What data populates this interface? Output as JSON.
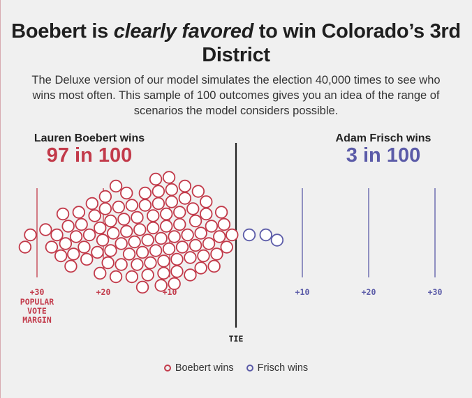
{
  "title": {
    "part1": "Boebert is ",
    "emphasis": "clearly favored",
    "part2": " to win Colorado’s 3rd District"
  },
  "subtitle": "The Deluxe version of our model simulates the election 40,000 times to see who wins most often. This sample of 100 outcomes gives you an idea of the range of scenarios the model considers possible.",
  "left_side": {
    "heading": "Lauren Boebert wins",
    "tally": "97 in 100"
  },
  "right_side": {
    "heading": "Adam Frisch wins",
    "tally": "3 in 100"
  },
  "colors": {
    "boebert": "#c23a4a",
    "frisch": "#5b5ba8",
    "tie": "#222222",
    "background": "#f0f0f0"
  },
  "legend": {
    "boebert": "Boebert wins",
    "frisch": "Frisch wins"
  },
  "chart_data": {
    "type": "scatter",
    "subtype": "beeswarm",
    "x_axis_label": "POPULAR VOTE MARGIN",
    "center_label": "TIE",
    "xlim": [
      -30,
      30
    ],
    "left_ticks": [
      {
        "value": -30,
        "label": "+30"
      },
      {
        "value": -20,
        "label": "+20"
      },
      {
        "value": -10,
        "label": "+10"
      }
    ],
    "right_ticks": [
      {
        "value": 10,
        "label": "+10"
      },
      {
        "value": 20,
        "label": "+20"
      },
      {
        "value": 30,
        "label": "+30"
      }
    ],
    "series": [
      {
        "name": "Boebert wins",
        "count": 97,
        "margins": [
          -31.8,
          -31.0,
          -28.7,
          -27.8,
          -27.0,
          -26.1,
          -25.3,
          -24.5,
          -23.7,
          -22.9,
          -22.1,
          -21.3,
          -20.5,
          -19.7,
          -18.9,
          -18.1,
          -17.3,
          -16.5,
          -15.7,
          -14.9,
          -14.1,
          -13.3,
          -12.5,
          -11.7,
          -10.9,
          -10.1,
          -9.3,
          -8.5,
          -7.7,
          -6.9,
          -6.1,
          -5.3,
          -4.5,
          -3.7,
          -2.9,
          -2.2,
          -1.4,
          -0.6,
          -26.4,
          -24.9,
          -23.3,
          -21.7,
          -20.1,
          -18.5,
          -16.9,
          -15.3,
          -13.7,
          -12.1,
          -10.5,
          -8.9,
          -7.3,
          -5.7,
          -4.1,
          -2.5,
          -25.7,
          -24.1,
          -22.5,
          -20.9,
          -19.3,
          -17.7,
          -16.1,
          -14.5,
          -12.9,
          -11.3,
          -9.7,
          -8.1,
          -6.5,
          -4.9,
          -3.3,
          -1.8,
          -20.5,
          -18.9,
          -17.3,
          -15.7,
          -14.1,
          -12.5,
          -10.9,
          -9.3,
          -7.7,
          -6.1,
          -4.5,
          -19.7,
          -18.1,
          -16.5,
          -14.9,
          -13.3,
          -11.7,
          -10.1,
          -8.5,
          -6.9,
          -5.3,
          -13.7,
          -12.1,
          -10.5,
          -8.9,
          -11.3,
          -9.7
        ]
      },
      {
        "name": "Frisch wins",
        "count": 3,
        "margins": [
          2.0,
          4.5,
          6.2
        ]
      }
    ]
  }
}
